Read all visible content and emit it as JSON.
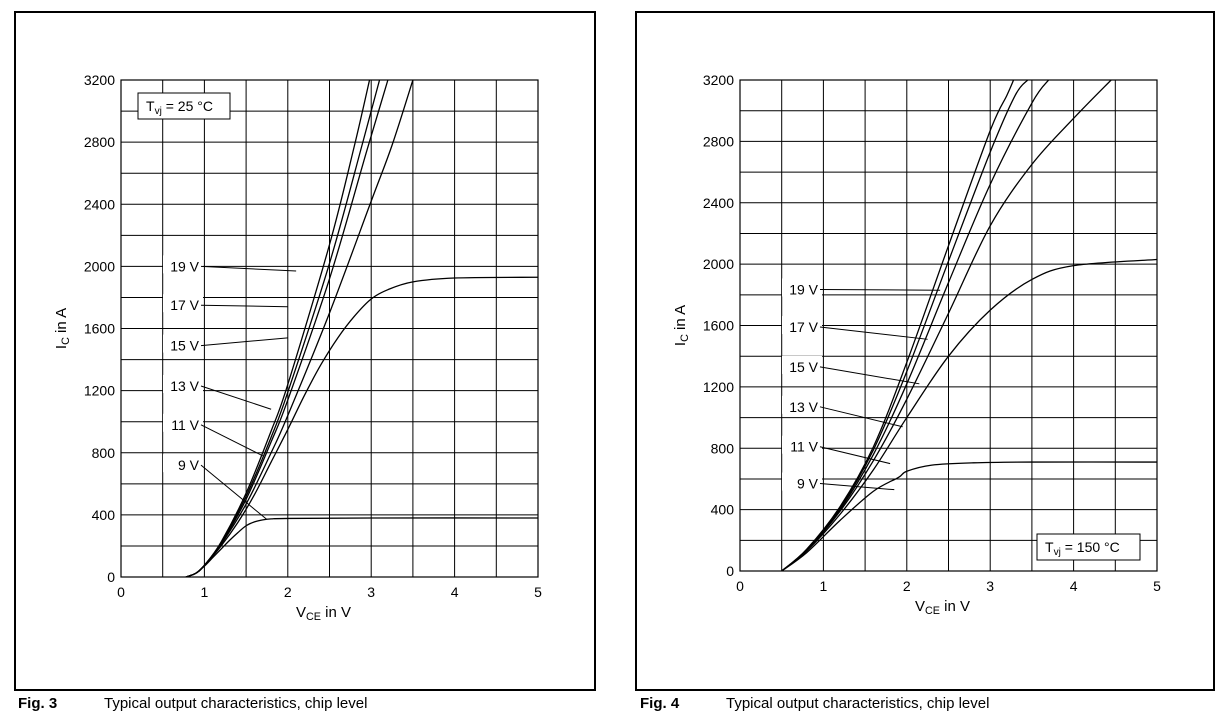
{
  "captions": [
    {
      "fig": "Fig. 3",
      "text": "Typical output characteristics, chip level"
    },
    {
      "fig": "Fig. 4",
      "text": "Typical output characteristics, chip level"
    }
  ],
  "chart_data": [
    {
      "type": "line",
      "xlabel_main": "V",
      "xlabel_sub": "CE",
      "xlabel_tail": " in V",
      "ylabel_main": "I",
      "ylabel_sub": "C",
      "ylabel_tail": " in A",
      "xlim": [
        0,
        5
      ],
      "ylim": [
        0,
        3200
      ],
      "xticks": [
        0,
        1,
        2,
        3,
        4,
        5
      ],
      "yticks": [
        0,
        400,
        800,
        1200,
        1600,
        2000,
        2400,
        2800,
        3200
      ],
      "grid": true,
      "annotation": {
        "main": "T",
        "sub": "vj",
        "tail": " = 25 °C",
        "position": "top-left"
      },
      "series": [
        {
          "name": "9 V",
          "points": [
            [
              0.78,
              0
            ],
            [
              0.9,
              25
            ],
            [
              1.0,
              70
            ],
            [
              1.1,
              125
            ],
            [
              1.2,
              180
            ],
            [
              1.3,
              235
            ],
            [
              1.4,
              285
            ],
            [
              1.5,
              330
            ],
            [
              1.6,
              355
            ],
            [
              1.7,
              368
            ],
            [
              1.8,
              374
            ],
            [
              2.0,
              377
            ],
            [
              3.0,
              380
            ],
            [
              5.0,
              380
            ]
          ]
        },
        {
          "name": "11 V",
          "points": [
            [
              0.78,
              0
            ],
            [
              0.9,
              25
            ],
            [
              1.0,
              75
            ],
            [
              1.2,
              200
            ],
            [
              1.4,
              350
            ],
            [
              1.6,
              530
            ],
            [
              1.8,
              740
            ],
            [
              2.0,
              950
            ],
            [
              2.2,
              1170
            ],
            [
              2.4,
              1370
            ],
            [
              2.6,
              1540
            ],
            [
              2.8,
              1680
            ],
            [
              3.0,
              1790
            ],
            [
              3.2,
              1850
            ],
            [
              3.5,
              1900
            ],
            [
              4.0,
              1925
            ],
            [
              5.0,
              1930
            ]
          ]
        },
        {
          "name": "13 V",
          "points": [
            [
              0.78,
              0
            ],
            [
              0.9,
              25
            ],
            [
              1.0,
              75
            ],
            [
              1.2,
              210
            ],
            [
              1.5,
              470
            ],
            [
              1.8,
              800
            ],
            [
              2.0,
              1040
            ],
            [
              2.5,
              1700
            ],
            [
              3.0,
              2420
            ],
            [
              3.25,
              2780
            ],
            [
              3.5,
              3200
            ]
          ]
        },
        {
          "name": "15 V",
          "points": [
            [
              0.78,
              0
            ],
            [
              0.9,
              25
            ],
            [
              1.0,
              75
            ],
            [
              1.2,
              215
            ],
            [
              1.5,
              500
            ],
            [
              1.8,
              870
            ],
            [
              2.0,
              1140
            ],
            [
              2.5,
              1920
            ],
            [
              2.95,
              2750
            ],
            [
              3.2,
              3200
            ]
          ]
        },
        {
          "name": "17 V",
          "points": [
            [
              0.78,
              0
            ],
            [
              0.9,
              25
            ],
            [
              1.0,
              75
            ],
            [
              1.2,
              220
            ],
            [
              1.5,
              520
            ],
            [
              1.8,
              900
            ],
            [
              2.0,
              1190
            ],
            [
              2.5,
              2020
            ],
            [
              2.9,
              2800
            ],
            [
              3.1,
              3200
            ]
          ]
        },
        {
          "name": "19 V",
          "points": [
            [
              0.78,
              0
            ],
            [
              0.9,
              25
            ],
            [
              1.0,
              75
            ],
            [
              1.2,
              225
            ],
            [
              1.5,
              540
            ],
            [
              1.8,
              940
            ],
            [
              2.0,
              1240
            ],
            [
              2.5,
              2140
            ],
            [
              2.8,
              2780
            ],
            [
              2.98,
              3200
            ]
          ]
        }
      ],
      "curve_labels": [
        {
          "text": "19 V",
          "y": 2000,
          "target": [
            2.1,
            1970
          ]
        },
        {
          "text": "17 V",
          "y": 1750,
          "target": [
            2.0,
            1740
          ]
        },
        {
          "text": "15 V",
          "y": 1490,
          "target": [
            2.0,
            1540
          ]
        },
        {
          "text": "13 V",
          "y": 1230,
          "target": [
            1.8,
            1080
          ]
        },
        {
          "text": "11 V",
          "y": 980,
          "target": [
            1.7,
            780
          ]
        },
        {
          "text": "9 V",
          "y": 720,
          "target": [
            1.75,
            370
          ]
        }
      ]
    },
    {
      "type": "line",
      "xlabel_main": "V",
      "xlabel_sub": "CE",
      "xlabel_tail": " in V",
      "ylabel_main": "I",
      "ylabel_sub": "C",
      "ylabel_tail": " in A",
      "xlim": [
        0,
        5
      ],
      "ylim": [
        0,
        3200
      ],
      "xticks": [
        0,
        1,
        2,
        3,
        4,
        5
      ],
      "yticks": [
        0,
        400,
        800,
        1200,
        1600,
        2000,
        2400,
        2800,
        3200
      ],
      "grid": true,
      "annotation": {
        "main": "T",
        "sub": "vj",
        "tail": " = 150 °C",
        "position": "bottom-right"
      },
      "series": [
        {
          "name": "9 V",
          "points": [
            [
              0.5,
              0
            ],
            [
              0.8,
              120
            ],
            [
              1.2,
              330
            ],
            [
              1.6,
              520
            ],
            [
              1.9,
              610
            ],
            [
              2.0,
              650
            ],
            [
              2.3,
              690
            ],
            [
              2.8,
              705
            ],
            [
              3.5,
              710
            ],
            [
              5.0,
              710
            ]
          ]
        },
        {
          "name": "11 V",
          "points": [
            [
              0.5,
              0
            ],
            [
              0.8,
              130
            ],
            [
              1.2,
              370
            ],
            [
              1.6,
              660
            ],
            [
              2.0,
              1000
            ],
            [
              2.5,
              1400
            ],
            [
              3.0,
              1700
            ],
            [
              3.5,
              1900
            ],
            [
              4.0,
              1990
            ],
            [
              5.0,
              2030
            ]
          ]
        },
        {
          "name": "13 V",
          "points": [
            [
              0.5,
              0
            ],
            [
              0.8,
              135
            ],
            [
              1.2,
              390
            ],
            [
              1.6,
              720
            ],
            [
              2.0,
              1120
            ],
            [
              2.5,
              1680
            ],
            [
              3.0,
              2250
            ],
            [
              3.5,
              2650
            ],
            [
              4.0,
              2950
            ],
            [
              4.45,
              3200
            ]
          ]
        },
        {
          "name": "15 V",
          "points": [
            [
              0.5,
              0
            ],
            [
              0.8,
              138
            ],
            [
              1.2,
              400
            ],
            [
              1.6,
              760
            ],
            [
              2.0,
              1220
            ],
            [
              2.5,
              1880
            ],
            [
              3.0,
              2520
            ],
            [
              3.5,
              3050
            ],
            [
              3.7,
              3200
            ]
          ]
        },
        {
          "name": "17 V",
          "points": [
            [
              0.5,
              0
            ],
            [
              0.8,
              140
            ],
            [
              1.2,
              410
            ],
            [
              1.6,
              790
            ],
            [
              2.0,
              1300
            ],
            [
              2.5,
              2020
            ],
            [
              3.0,
              2730
            ],
            [
              3.3,
              3100
            ],
            [
              3.45,
              3200
            ]
          ]
        },
        {
          "name": "19 V",
          "points": [
            [
              0.5,
              0
            ],
            [
              0.8,
              142
            ],
            [
              1.2,
              420
            ],
            [
              1.6,
              810
            ],
            [
              2.0,
              1360
            ],
            [
              2.5,
              2120
            ],
            [
              3.0,
              2870
            ],
            [
              3.2,
              3100
            ],
            [
              3.28,
              3200
            ]
          ]
        }
      ],
      "curve_labels": [
        {
          "text": "19 V",
          "y": 1835,
          "target": [
            2.4,
            1830
          ]
        },
        {
          "text": "17 V",
          "y": 1590,
          "target": [
            2.25,
            1510
          ]
        },
        {
          "text": "15 V",
          "y": 1330,
          "target": [
            2.15,
            1220
          ]
        },
        {
          "text": "13 V",
          "y": 1070,
          "target": [
            1.95,
            940
          ]
        },
        {
          "text": "11 V",
          "y": 810,
          "target": [
            1.8,
            700
          ]
        },
        {
          "text": "9 V",
          "y": 570,
          "target": [
            1.85,
            530
          ]
        }
      ]
    }
  ]
}
